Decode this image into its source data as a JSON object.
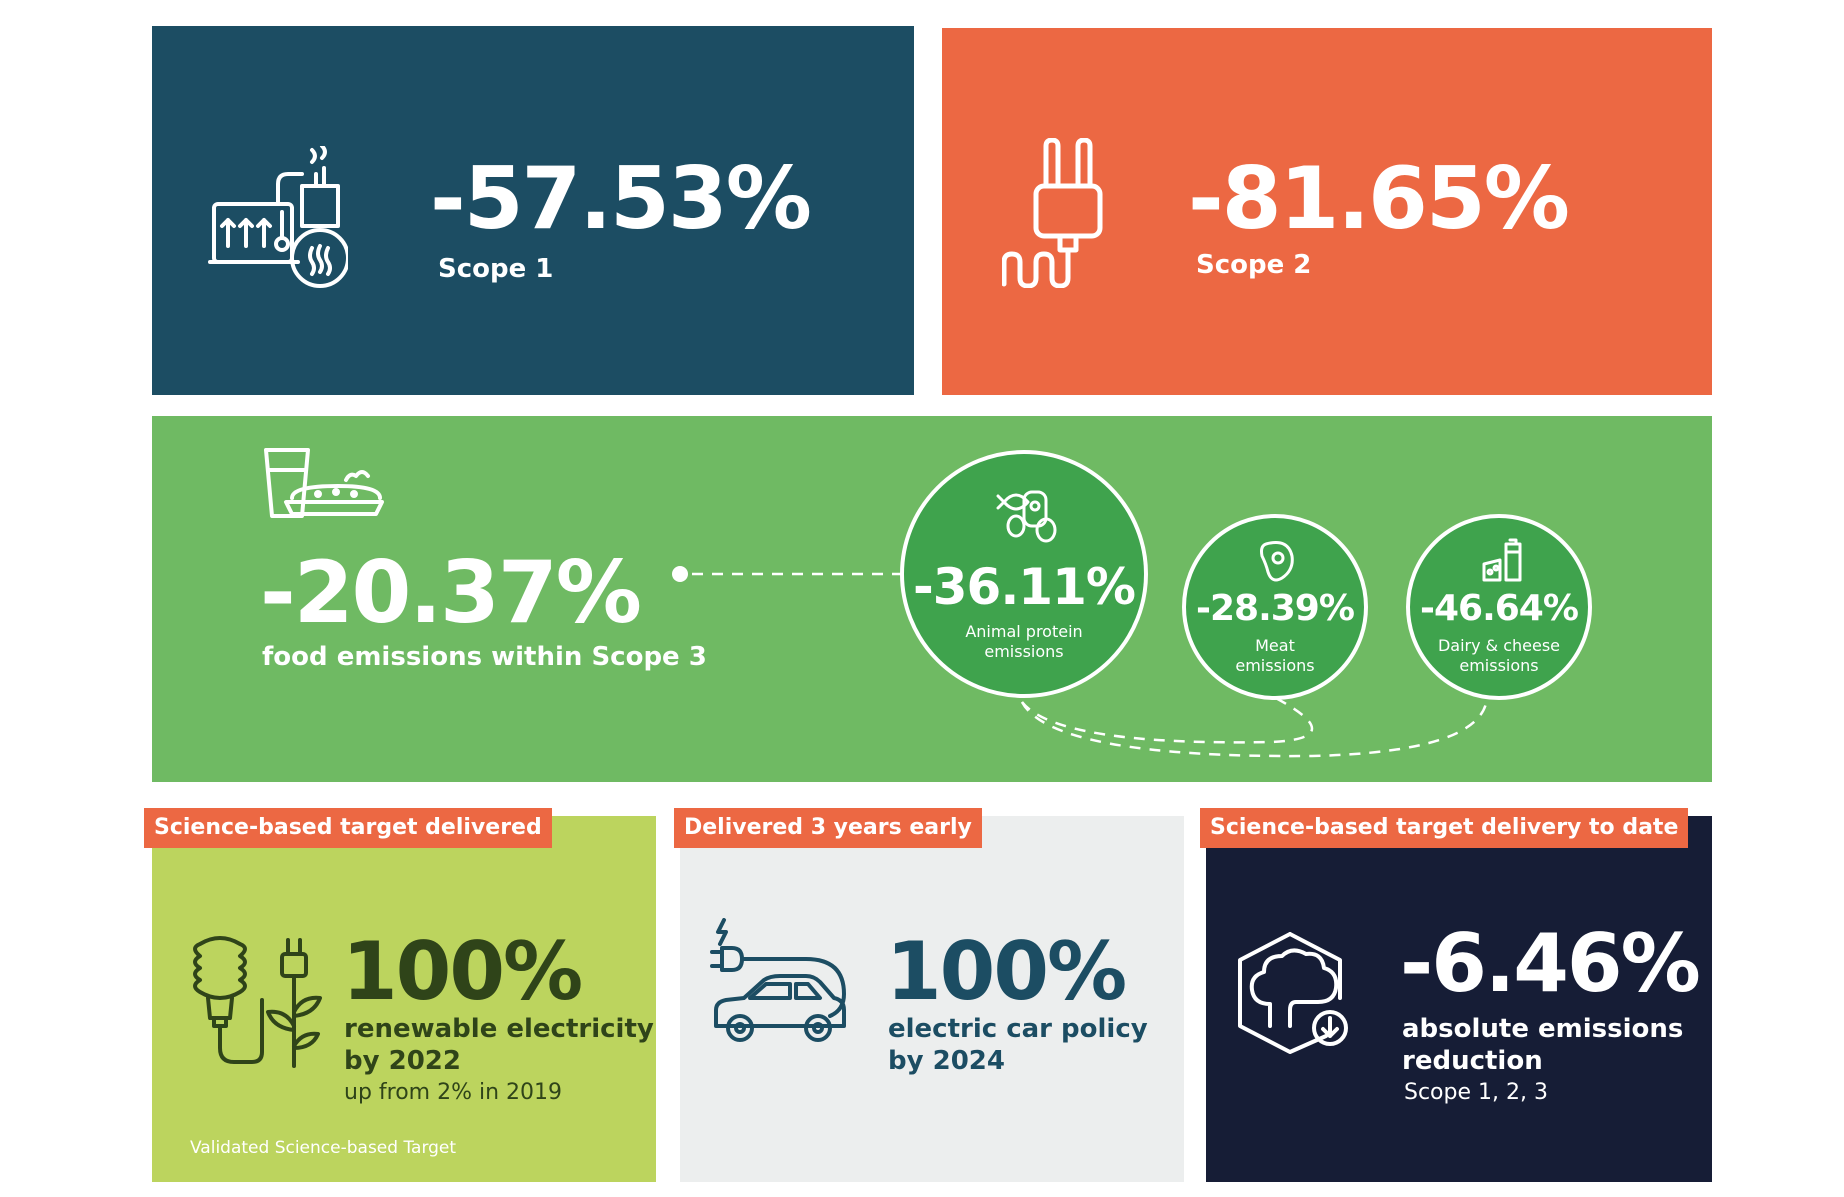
{
  "colors": {
    "navy": "#1c4d63",
    "orange": "#ec6843",
    "green": "#6fba63",
    "circle_green": "#3fa34d",
    "lime": "#bcd45e",
    "light_grey": "#eceeee",
    "dark_navy": "#161d36",
    "teal_text": "#1c4d63",
    "olive_text": "#2f4419"
  },
  "scope1": {
    "value": "-57.53%",
    "label": "Scope 1",
    "icon": "factory-heat-icon"
  },
  "scope2": {
    "value": "-81.65%",
    "label": "Scope 2",
    "icon": "electric-plug-icon"
  },
  "scope3": {
    "icon": "food-meal-icon",
    "value": "-20.37%",
    "label": "food emissions within Scope 3",
    "breakdown": [
      {
        "value": "-36.11%",
        "line1": "Animal protein",
        "line2": "emissions",
        "icon": "fish-meat-egg-icon"
      },
      {
        "value": "-28.39%",
        "line1": "Meat",
        "line2": "emissions",
        "icon": "steak-icon"
      },
      {
        "value": "-46.64%",
        "line1": "Dairy & cheese",
        "line2": "emissions",
        "icon": "milk-cheese-icon"
      }
    ]
  },
  "renewable": {
    "tag": "Science-based target delivered",
    "value": "100%",
    "line1": "renewable electricity",
    "line2": "by 2022",
    "sub": "up from 2% in 2019",
    "footnote": "Validated Science-based Target",
    "icon": "bulb-plug-plant-icon"
  },
  "electric_car": {
    "tag": "Delivered 3 years early",
    "value": "100%",
    "line1": "electric car policy",
    "line2": "by 2024",
    "icon": "electric-car-icon"
  },
  "absolute": {
    "tag": "Science-based target delivery to date",
    "value": "-6.46%",
    "line1": "absolute emissions",
    "line2": "reduction",
    "sub": "Scope 1, 2, 3",
    "icon": "cloud-down-icon"
  }
}
